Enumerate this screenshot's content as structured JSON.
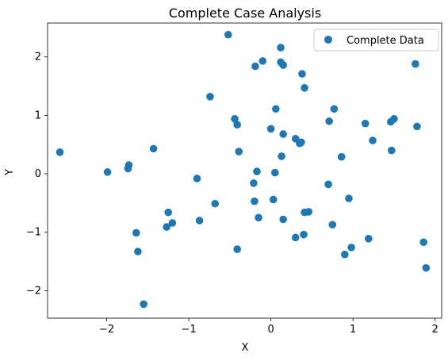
{
  "chart_data": {
    "type": "scatter",
    "title": "Complete Case Analysis",
    "xlabel": "X",
    "ylabel": "Y",
    "xlim": [
      -2.72,
      2.08
    ],
    "ylim": [
      -2.47,
      2.58
    ],
    "xticks": [
      -2,
      -1,
      0,
      1,
      2
    ],
    "yticks": [
      -2,
      -1,
      0,
      1,
      2
    ],
    "xtick_labels": [
      "−2",
      "−1",
      "0",
      "1",
      "2"
    ],
    "ytick_labels": [
      "−2",
      "−1",
      "0",
      "1",
      "2"
    ],
    "grid": false,
    "legend_position": "top-right",
    "series": [
      {
        "name": "Complete Data",
        "color": "#1f77b4",
        "points": [
          [
            -2.57,
            0.37
          ],
          [
            -1.99,
            0.03
          ],
          [
            -1.73,
            0.15
          ],
          [
            -1.74,
            0.09
          ],
          [
            -1.43,
            0.43
          ],
          [
            -1.64,
            -1.01
          ],
          [
            -1.62,
            -1.33
          ],
          [
            -1.55,
            -2.23
          ],
          [
            -1.25,
            -0.66
          ],
          [
            -1.27,
            -0.91
          ],
          [
            -1.2,
            -0.84
          ],
          [
            -0.9,
            -0.08
          ],
          [
            -0.87,
            -0.8
          ],
          [
            -0.74,
            1.32
          ],
          [
            -0.68,
            -0.51
          ],
          [
            -0.52,
            2.38
          ],
          [
            -0.44,
            0.94
          ],
          [
            -0.41,
            0.84
          ],
          [
            -0.39,
            0.38
          ],
          [
            -0.41,
            -1.29
          ],
          [
            -0.19,
            1.84
          ],
          [
            -0.21,
            -0.16
          ],
          [
            -0.2,
            -0.47
          ],
          [
            -0.17,
            0.04
          ],
          [
            -0.15,
            -0.75
          ],
          [
            -0.1,
            1.93
          ],
          [
            0.0,
            0.77
          ],
          [
            0.03,
            -0.44
          ],
          [
            0.05,
            0.02
          ],
          [
            0.06,
            1.11
          ],
          [
            0.12,
            1.91
          ],
          [
            0.12,
            2.16
          ],
          [
            0.13,
            0.3
          ],
          [
            0.15,
            1.86
          ],
          [
            0.15,
            0.68
          ],
          [
            0.15,
            -0.78
          ],
          [
            0.3,
            0.6
          ],
          [
            0.3,
            -1.09
          ],
          [
            0.35,
            0.52
          ],
          [
            0.37,
            0.54
          ],
          [
            0.38,
            1.71
          ],
          [
            0.41,
            1.47
          ],
          [
            0.41,
            -0.66
          ],
          [
            0.46,
            -0.65
          ],
          [
            0.4,
            -1.04
          ],
          [
            0.71,
            0.9
          ],
          [
            0.7,
            -0.18
          ],
          [
            0.77,
            1.11
          ],
          [
            0.75,
            -0.87
          ],
          [
            0.86,
            0.29
          ],
          [
            0.9,
            -1.38
          ],
          [
            0.95,
            -0.42
          ],
          [
            0.98,
            -1.26
          ],
          [
            1.15,
            0.86
          ],
          [
            1.19,
            -1.11
          ],
          [
            1.24,
            0.57
          ],
          [
            1.46,
            0.89
          ],
          [
            1.5,
            0.94
          ],
          [
            1.47,
            0.4
          ],
          [
            1.76,
            1.88
          ],
          [
            1.78,
            0.81
          ],
          [
            1.86,
            -1.17
          ],
          [
            1.89,
            -1.61
          ]
        ]
      }
    ]
  }
}
